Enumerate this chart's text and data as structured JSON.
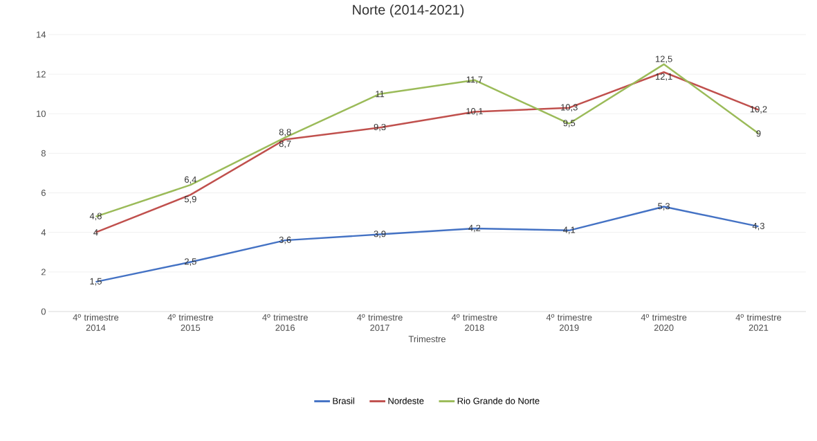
{
  "chart_data": {
    "type": "line",
    "title": "Norte (2014-2021)",
    "xlabel": "Trimestre",
    "categories": [
      "4º trimestre 2014",
      "4º trimestre 2015",
      "4º trimestre 2016",
      "4º trimestre 2017",
      "4º trimestre 2018",
      "4º trimestre 2019",
      "4º trimestre 2020",
      "4º trimestre 2021"
    ],
    "series": [
      {
        "name": "Brasil",
        "color": "#4472c4",
        "values": [
          1.5,
          2.5,
          3.6,
          3.9,
          4.2,
          4.1,
          5.3,
          4.3
        ],
        "value_labels": [
          "1,5",
          "2,5",
          "3,6",
          "3,9",
          "4,2",
          "4,1",
          "5,3",
          "4,3"
        ]
      },
      {
        "name": "Nordeste",
        "color": "#c0504d",
        "values": [
          4,
          5.9,
          8.7,
          9.3,
          10.1,
          10.3,
          12.1,
          10.2
        ],
        "value_labels": [
          "4",
          "5,9",
          "8,7",
          "9,3",
          "10,1",
          "10,3",
          "12,1",
          "10,2"
        ]
      },
      {
        "name": "Rio Grande do Norte",
        "color": "#9bbb59",
        "values": [
          4.8,
          6.4,
          8.8,
          11,
          11.7,
          9.5,
          12.5,
          9
        ],
        "value_labels": [
          "4,8",
          "6,4",
          "8,8",
          "11",
          "11,7",
          "9,5",
          "12,5",
          "9"
        ]
      }
    ],
    "ylim": [
      0,
      14
    ],
    "yticks": [
      0,
      2,
      4,
      6,
      8,
      10,
      12,
      14
    ],
    "grid": "y",
    "legend": "bottom",
    "marker": "none",
    "line_style": "solid"
  }
}
